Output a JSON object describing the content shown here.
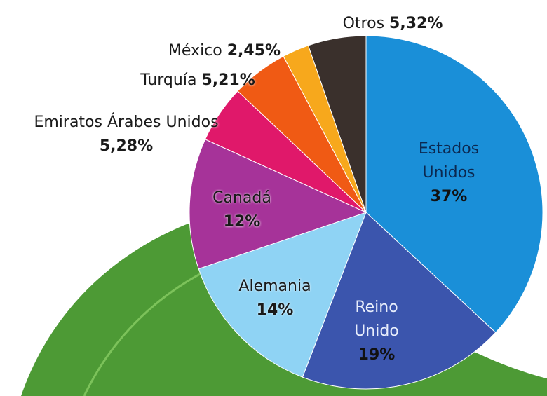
{
  "chart_data": {
    "type": "pie",
    "categories": [
      "Estados Unidos",
      "Reino Unido",
      "Alemania",
      "Canadá",
      "Emiratos Árabes Unidos",
      "Turquía",
      "México",
      "Otros"
    ],
    "values": [
      37,
      19,
      14,
      12,
      5.28,
      5.21,
      2.45,
      5.32
    ],
    "value_labels": [
      "37%",
      "19%",
      "14%",
      "12%",
      "5,28%",
      "5,21%",
      "2,45%",
      "5,32%"
    ],
    "colors": [
      "#1a8fd8",
      "#3b55ad",
      "#8fd3f4",
      "#a63399",
      "#e0186a",
      "#f05a14",
      "#f7a81c",
      "#3a302c"
    ]
  }
}
